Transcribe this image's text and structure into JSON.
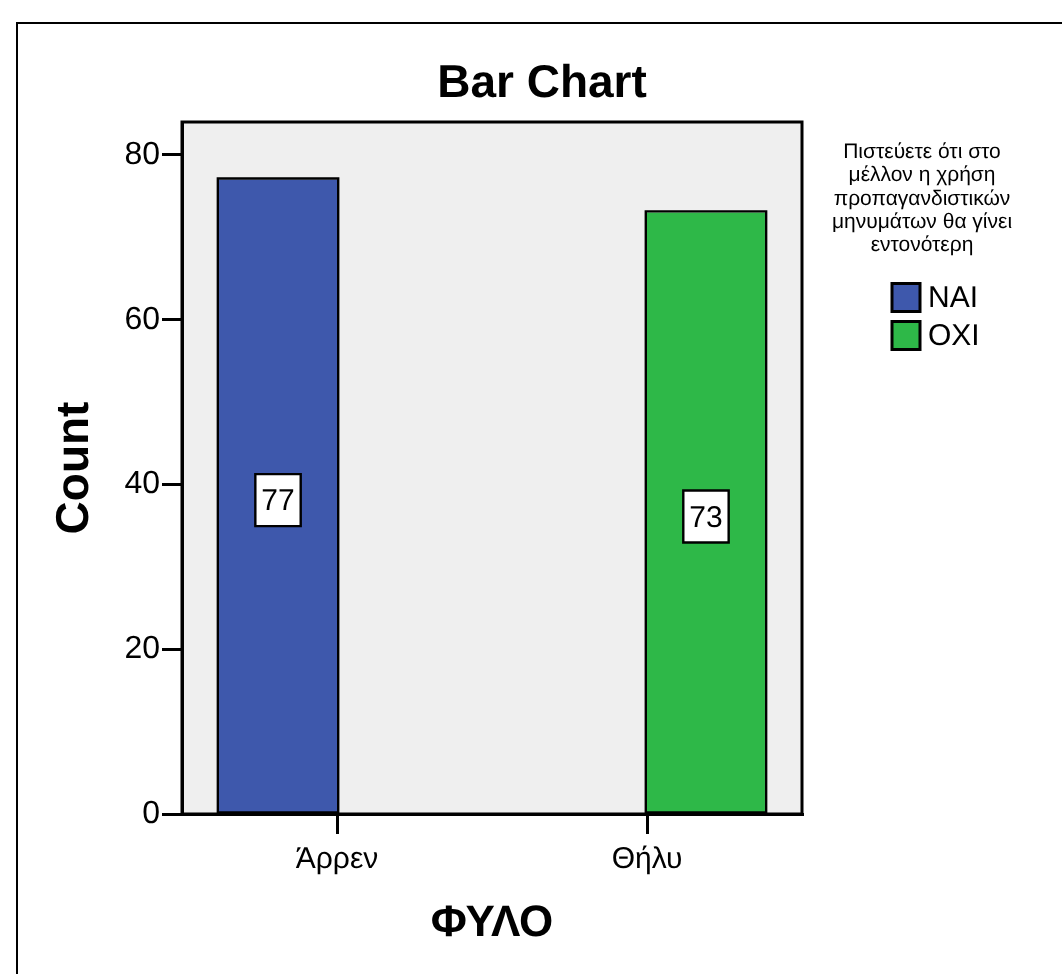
{
  "chart_data": {
    "type": "bar",
    "title": "Bar Chart",
    "xlabel": "ΦΥΛΟ",
    "ylabel": "Count",
    "legend_title": "Πιστεύετε ότι στο μέλλον η χρήση προπαγανδιστικών μηνυμάτων θα γίνει εντονότερη",
    "categories": [
      "Άρρεν",
      "Θήλυ"
    ],
    "series": [
      {
        "name": "ΝΑΙ",
        "color": "#3e58ac",
        "values": [
          77,
          null
        ]
      },
      {
        "name": "ΟΧΙ",
        "color": "#2eb848",
        "values": [
          null,
          73
        ]
      }
    ],
    "ylim": [
      0,
      84
    ],
    "yticks": [
      0,
      20,
      40,
      60,
      80
    ],
    "data_labels": true,
    "legend": "right",
    "grid": false
  }
}
